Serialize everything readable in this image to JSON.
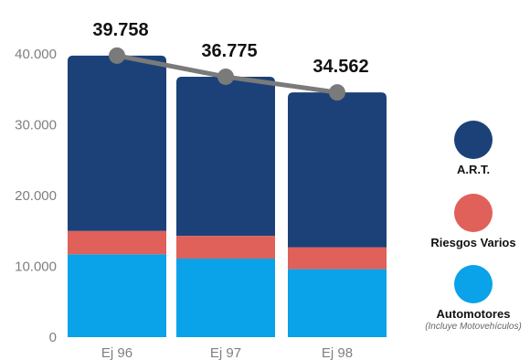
{
  "chart_data": {
    "type": "bar",
    "stacked": true,
    "categories": [
      "Ej 96",
      "Ej 97",
      "Ej 98"
    ],
    "series": [
      {
        "name": "Automotores",
        "note": "(Incluye Motovehículos)",
        "color": "#0aa2e8",
        "values": [
          11700,
          11100,
          9600
        ]
      },
      {
        "name": "Riesgos Varios",
        "color": "#e0605a",
        "values": [
          3300,
          3200,
          3100
        ]
      },
      {
        "name": "A.R.T.",
        "color": "#1b4178",
        "values": [
          24758,
          22475,
          21862
        ]
      }
    ],
    "totals": {
      "values": [
        39758,
        36775,
        34562
      ],
      "labels": [
        "39.758",
        "36.775",
        "34.562"
      ],
      "color": "#7a7a7a"
    },
    "ylim": [
      0,
      40000
    ],
    "yticks": [
      0,
      10000,
      20000,
      30000,
      40000
    ],
    "ytick_labels": [
      "0",
      "10.000",
      "20.000",
      "30.000",
      "40.000"
    ],
    "grid": false,
    "legend_position": "right"
  }
}
